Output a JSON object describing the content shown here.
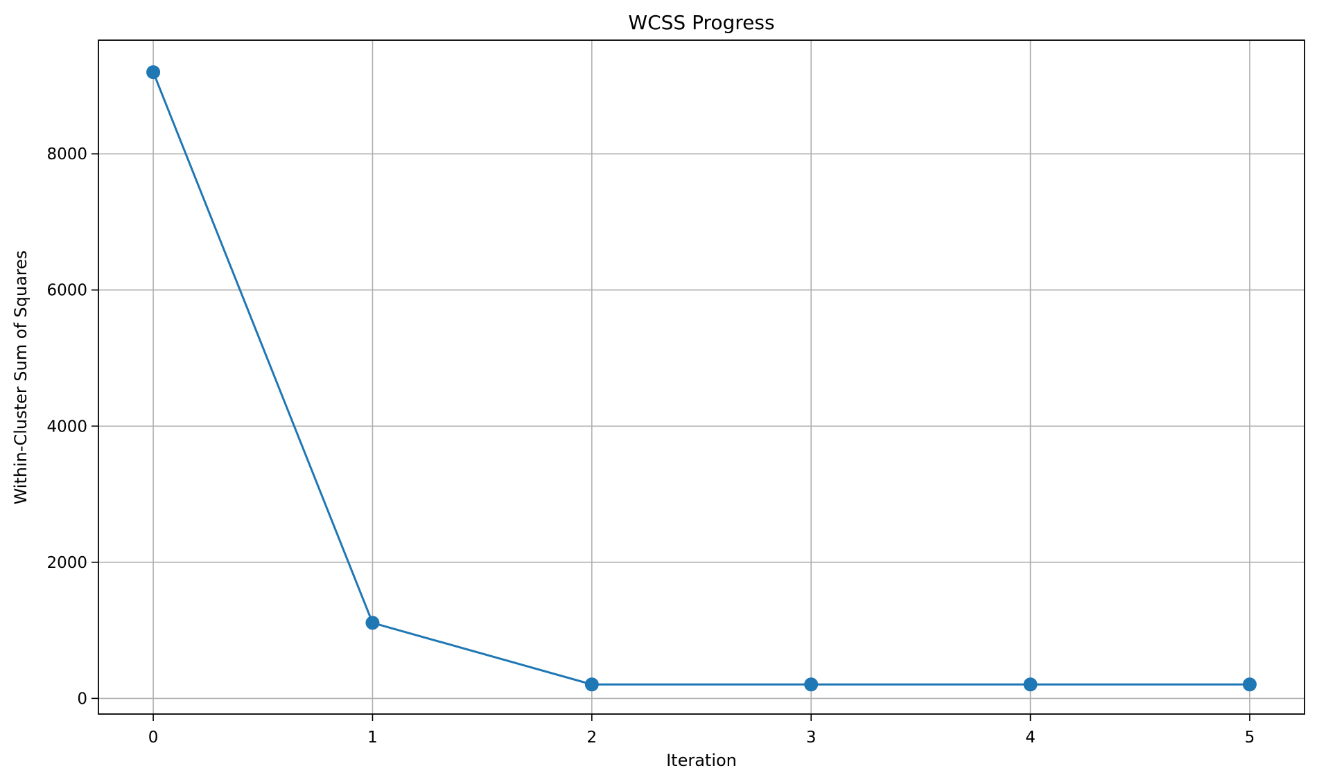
{
  "chart_data": {
    "type": "line",
    "title": "WCSS Progress",
    "xlabel": "Iteration",
    "ylabel": "Within-Cluster Sum of Squares",
    "x": [
      0,
      1,
      2,
      3,
      4,
      5
    ],
    "series": [
      {
        "values": [
          9200,
          1110,
          205,
          205,
          205,
          205
        ],
        "color": "#1f77b4",
        "marker": "circle"
      }
    ],
    "xlim": [
      -0.25,
      5.25
    ],
    "ylim": [
      -230,
      9670
    ],
    "xticks": [
      0,
      1,
      2,
      3,
      4,
      5
    ],
    "yticks": [
      0,
      2000,
      4000,
      6000,
      8000
    ],
    "grid": true
  }
}
